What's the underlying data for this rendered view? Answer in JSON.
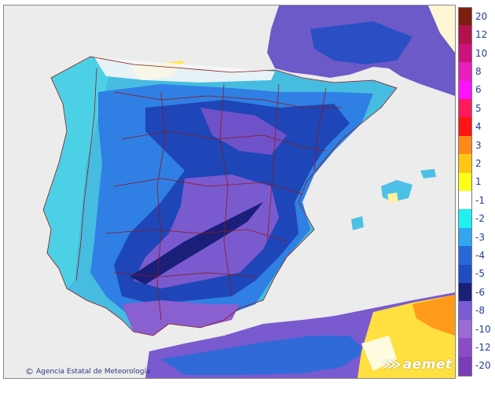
{
  "map": {
    "credit_text": "Agencia Estatal de Meteorología",
    "brand_text": "aemet"
  },
  "legend": {
    "entries": [
      {
        "label": "20",
        "color": "#7d1e0e"
      },
      {
        "label": "12",
        "color": "#b3134d"
      },
      {
        "label": "10",
        "color": "#cc137c"
      },
      {
        "label": "8",
        "color": "#e81fbd"
      },
      {
        "label": "6",
        "color": "#ff12ff"
      },
      {
        "label": "5",
        "color": "#ff1a5c"
      },
      {
        "label": "4",
        "color": "#ff1414"
      },
      {
        "label": "3",
        "color": "#ff8a1a"
      },
      {
        "label": "2",
        "color": "#ffc614"
      },
      {
        "label": "1",
        "color": "#ffff1a"
      },
      {
        "label": "-1",
        "color": "#ffffff"
      },
      {
        "label": "-2",
        "color": "#1ff0f0"
      },
      {
        "label": "-3",
        "color": "#33a6f2"
      },
      {
        "label": "-4",
        "color": "#2668d9"
      },
      {
        "label": "-5",
        "color": "#1f4dc4"
      },
      {
        "label": "-6",
        "color": "#1a1f7a"
      },
      {
        "label": "-8",
        "color": "#7b5cd6"
      },
      {
        "label": "-10",
        "color": "#9b6bd6"
      },
      {
        "label": "-12",
        "color": "#8a4cc7"
      },
      {
        "label": "-20",
        "color": "#7a3cb8"
      }
    ]
  },
  "colors": {
    "sea": "#ececec",
    "ocean_band": "#48c7d6",
    "border_lines": "#8b1a1a"
  }
}
